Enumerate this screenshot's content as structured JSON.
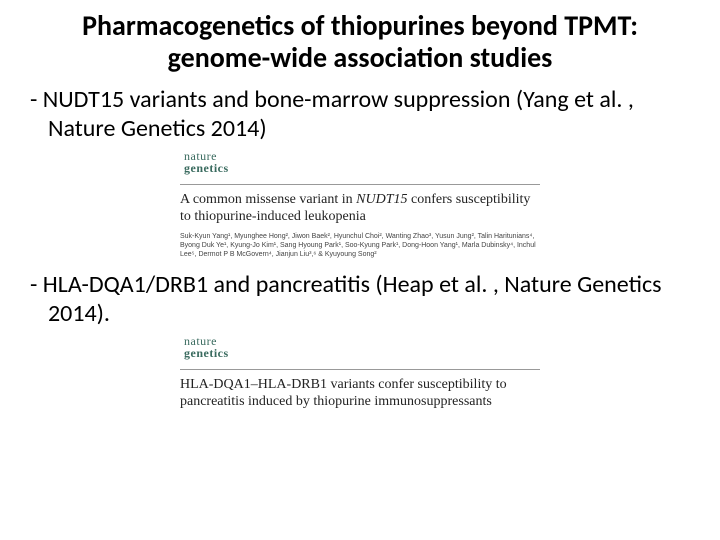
{
  "title": "Pharmacogenetics of thiopurines beyond TPMT: genome-wide association studies",
  "bullets": {
    "b1": "NUDT15 variants and bone-marrow suppression (Yang et al. , Nature Genetics 2014)",
    "b2": "HLA-DQA1/DRB1 and pancreatitis (Heap et al. , Nature Genetics 2014)."
  },
  "journal": {
    "line1": "nature",
    "line2": "genetics"
  },
  "paper1": {
    "title_pre": "A common missense variant in ",
    "title_ital": "NUDT15",
    "title_post": " confers susceptibility to thiopurine-induced leukopenia",
    "authors": "Suk-Kyun Yang¹, Myunghee Hong², Jiwon Baek², Hyunchul Choi², Wanting Zhao³, Yusun Jung², Talin Haritunians⁴, Byong Duk Ye¹, Kyung-Jo Kim¹, Sang Hyoung Park¹, Soo-Kyung Park¹, Dong-Hoon Yang¹, Marla Dubinsky⁴, Inchul Lee⁵, Dermot P B McGovern⁴, Jianjun Liu³,⁶ & Kyuyoung Song²"
  },
  "paper2": {
    "title": "HLA-DQA1–HLA-DRB1 variants confer susceptibility to pancreatitis induced by thiopurine immunosuppressants"
  },
  "colors": {
    "text": "#000000",
    "journal_logo": "#3a6b5f",
    "rule": "#999999",
    "background": "#ffffff"
  },
  "typography": {
    "title_fontsize": 28,
    "bullet_fontsize": 24,
    "paper_title_fontsize": 14,
    "authors_fontsize": 7,
    "title_weight": 700
  }
}
